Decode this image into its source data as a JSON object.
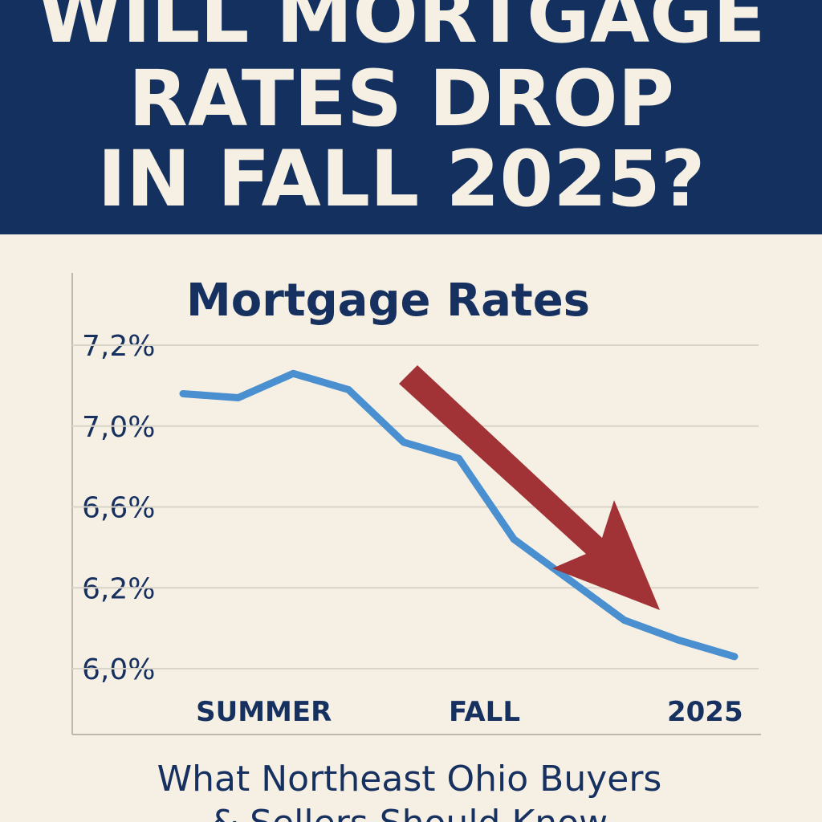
{
  "header": {
    "title": [
      "WILL MORTGAGE",
      "RATES DROP",
      "IN FALL 2025?"
    ]
  },
  "chart_data": {
    "type": "line",
    "title": "Mortgage Rates",
    "categories": [
      null,
      "SUMMER",
      null,
      null,
      null,
      "FALL",
      null,
      null,
      null,
      "2025",
      null
    ],
    "series": [
      {
        "name": "Mortgage rate",
        "color": "#4a8fd0",
        "values": [
          7.08,
          7.07,
          7.13,
          7.09,
          6.92,
          6.84,
          6.44,
          6.24,
          6.12,
          6.07,
          6.03
        ]
      }
    ],
    "ylim": [
      6.0,
      7.2
    ],
    "yticks": [
      {
        "value": 7.2,
        "label": "7,2%"
      },
      {
        "value": 7.0,
        "label": "7,0%"
      },
      {
        "value": 6.6,
        "label": "6,6%"
      },
      {
        "value": 6.2,
        "label": "6,2%"
      },
      {
        "value": 6.0,
        "label": "6,0%"
      }
    ],
    "grid": true
  },
  "footer": {
    "lines": [
      "What Northeast Ohio Buyers",
      "& Sellers Should Know"
    ]
  }
}
